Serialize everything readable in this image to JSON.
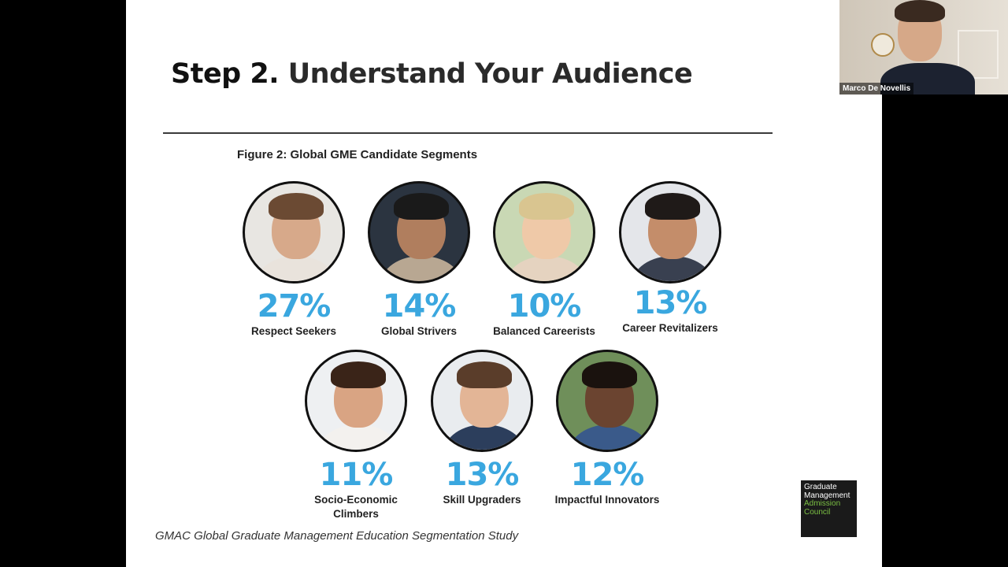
{
  "slide": {
    "title_step": "Step 2.",
    "title_rest": "Understand Your Audience",
    "figure_caption": "Figure 2: Global GME Candidate Segments",
    "source": "GMAC Global Graduate Management Education Segmentation Study"
  },
  "segments": [
    {
      "percent": "27%",
      "label": "Respect Seekers"
    },
    {
      "percent": "14%",
      "label": "Global Strivers"
    },
    {
      "percent": "10%",
      "label": "Balanced Careerists"
    },
    {
      "percent": "13%",
      "label": "Career Revitalizers"
    },
    {
      "percent": "11%",
      "label": "Socio-Economic Climbers"
    },
    {
      "percent": "13%",
      "label": "Skill Upgraders"
    },
    {
      "percent": "12%",
      "label": "Impactful Innovators"
    }
  ],
  "logo": {
    "line1": "Graduate",
    "line2": "Management",
    "line3": "Admission",
    "line4": "Council"
  },
  "video": {
    "participant_name": "Marco De Novellis"
  },
  "colors": {
    "percent_blue": "#3aa7df",
    "logo_green": "#7bc043"
  }
}
